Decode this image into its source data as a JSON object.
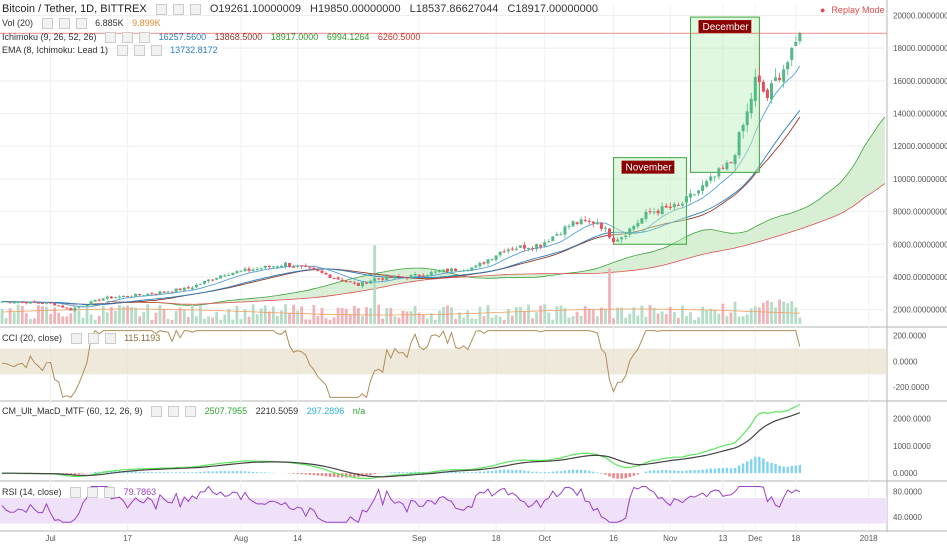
{
  "header": {
    "symbol": "Bitcoin / Tether, 1D, BITTREX",
    "open": "O19261.10000009",
    "high": "H19850.00000000",
    "low": "L18537.86627044",
    "close": "C18917.00000000",
    "replay": "Replay Mode"
  },
  "indicators": {
    "vol": {
      "label": "Vol (20)",
      "v1": "6.885K",
      "v2": "9.899K"
    },
    "ichimoku": {
      "label": "Ichimoku (9, 26, 52, 26)",
      "values": [
        "16257.5600",
        "13868.5000",
        "18917.0000",
        "6994.1264",
        "6260.5000"
      ]
    },
    "ema": {
      "label": "EMA (8, Ichimoku: Lead 1)",
      "value": "13732.8172"
    },
    "cci": {
      "label": "CCI (20, close)",
      "value": "115.1193"
    },
    "macd": {
      "label": "CM_Ult_MacD_MTF (60, 12, 26, 9)",
      "values": [
        "2507.7955",
        "2210.5059",
        "297.2896",
        "n/a"
      ]
    },
    "rsi": {
      "label": "RSI (14, close)",
      "value": "79.7863"
    }
  },
  "colors": {
    "up": "#53b987",
    "down": "#eb4d5c",
    "cloud": "#d4ecd0",
    "conv": "#5aa0d6",
    "base": "#8c3a2a",
    "lagging": "#3ca43c",
    "cci": "#b08d57",
    "rsi": "#9a3fc8",
    "macd_fast": "#5ce65c",
    "macd_slow": "#444444",
    "hist": "#7fd3f0",
    "box_fill": "#b9f0b9",
    "box_stroke": "#3ca43c",
    "box_label_bg": "#8b0000"
  },
  "chart_data": [
    {
      "type": "candlestick",
      "title": "Bitcoin / Tether, 1D, BITTREX",
      "x_tick_labels": [
        "Jul",
        "17",
        "Aug",
        "14",
        "Sep",
        "18",
        "Oct",
        "16",
        "Nov",
        "13",
        "Dec",
        "18",
        "2018"
      ],
      "y_tick_labels": [
        "2000.00000000",
        "4000.00000000",
        "6000.00000000",
        "8000.00000000",
        "10000.00000000",
        "12000.00000000",
        "14000.00000000",
        "16000.00000000",
        "18000.00000000",
        "20000.00000000"
      ],
      "ylim": [
        1000,
        20700
      ],
      "close_keypoints": [
        {
          "day": 0,
          "value": 2500
        },
        {
          "day": 12,
          "value": 2400
        },
        {
          "day": 17,
          "value": 2000
        },
        {
          "day": 25,
          "value": 2700
        },
        {
          "day": 34,
          "value": 2900
        },
        {
          "day": 46,
          "value": 3300
        },
        {
          "day": 55,
          "value": 4200
        },
        {
          "day": 63,
          "value": 4500
        },
        {
          "day": 70,
          "value": 4800
        },
        {
          "day": 78,
          "value": 4300
        },
        {
          "day": 84,
          "value": 3800
        },
        {
          "day": 88,
          "value": 3500
        },
        {
          "day": 92,
          "value": 3900
        },
        {
          "day": 100,
          "value": 4000
        },
        {
          "day": 110,
          "value": 4400
        },
        {
          "day": 117,
          "value": 4600
        },
        {
          "day": 124,
          "value": 5700
        },
        {
          "day": 133,
          "value": 6000
        },
        {
          "day": 141,
          "value": 7300
        },
        {
          "day": 147,
          "value": 7400
        },
        {
          "day": 151,
          "value": 6300
        },
        {
          "day": 153,
          "value": 6500
        },
        {
          "day": 160,
          "value": 8000
        },
        {
          "day": 167,
          "value": 8300
        },
        {
          "day": 175,
          "value": 9900
        },
        {
          "day": 180,
          "value": 11000
        },
        {
          "day": 184,
          "value": 14000
        },
        {
          "day": 186,
          "value": 16000
        },
        {
          "day": 189,
          "value": 15000
        },
        {
          "day": 192,
          "value": 16500
        },
        {
          "day": 195,
          "value": 17500
        },
        {
          "day": 197,
          "value": 18917
        }
      ],
      "annotations": [
        {
          "text": "November",
          "x_range": [
            "Nov 12",
            "Nov 30"
          ],
          "y_range": [
            6000,
            11300
          ]
        },
        {
          "text": "December",
          "x_range": [
            "Dec 1",
            "Dec 18"
          ],
          "y_range": [
            10400,
            19900
          ]
        }
      ],
      "last_price": 18917
    },
    {
      "type": "line",
      "title": "CCI (20, close)",
      "y_tick_labels": [
        "200.0000",
        "0.0000",
        "-200.0000"
      ],
      "ylim": [
        -300,
        260
      ],
      "band": [
        -100,
        100
      ],
      "last_value": 115.1193
    },
    {
      "type": "line",
      "title": "CM_Ult_MacD_MTF (60, 12, 26, 9)",
      "y_tick_labels": [
        "2000.0000",
        "1000.0000",
        "0.0000"
      ],
      "ylim": [
        -250,
        2600
      ],
      "series": [
        {
          "name": "MACD",
          "last": 2507.7955
        },
        {
          "name": "Signal",
          "last": 2210.5059
        },
        {
          "name": "Histogram",
          "last": 297.2896
        }
      ]
    },
    {
      "type": "line",
      "title": "RSI (14, close)",
      "y_tick_labels": [
        "80.0000",
        "40.0000"
      ],
      "ylim": [
        20,
        95
      ],
      "band": [
        30,
        70
      ],
      "last_value": 79.7863
    }
  ]
}
